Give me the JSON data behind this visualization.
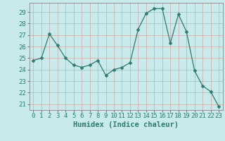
{
  "x": [
    0,
    1,
    2,
    3,
    4,
    5,
    6,
    7,
    8,
    9,
    10,
    11,
    12,
    13,
    14,
    15,
    16,
    17,
    18,
    19,
    20,
    21,
    22,
    23
  ],
  "y": [
    24.8,
    25.0,
    27.1,
    26.1,
    25.0,
    24.4,
    24.2,
    24.4,
    24.8,
    23.5,
    24.0,
    24.2,
    24.6,
    27.5,
    28.9,
    29.3,
    29.3,
    26.3,
    28.8,
    27.3,
    23.9,
    22.6,
    22.1,
    20.8
  ],
  "line_color": "#2e7b6e",
  "marker": "D",
  "marker_size": 2.5,
  "bg_color": "#c8eaea",
  "grid_color": "#c8a8a8",
  "xlabel": "Humidex (Indice chaleur)",
  "xlim": [
    -0.5,
    23.5
  ],
  "ylim": [
    20.5,
    29.8
  ],
  "yticks": [
    21,
    22,
    23,
    24,
    25,
    26,
    27,
    28,
    29
  ],
  "xticks": [
    0,
    1,
    2,
    3,
    4,
    5,
    6,
    7,
    8,
    9,
    10,
    11,
    12,
    13,
    14,
    15,
    16,
    17,
    18,
    19,
    20,
    21,
    22,
    23
  ],
  "xlabel_fontsize": 7.5,
  "tick_fontsize": 6.5
}
